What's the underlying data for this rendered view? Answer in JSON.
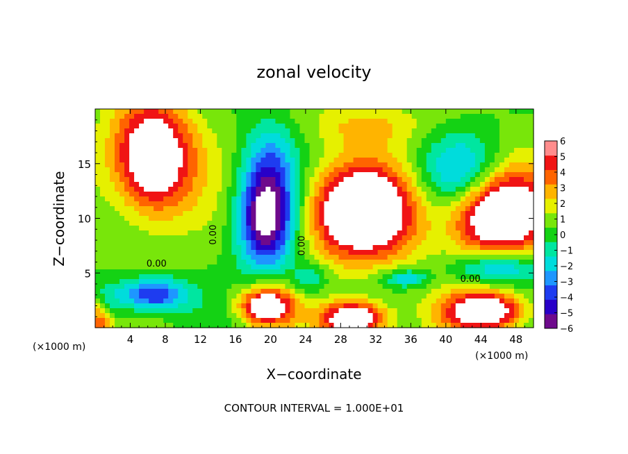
{
  "chart_data": {
    "type": "heatmap",
    "title": "zonal velocity",
    "xlabel": "X−coordinate",
    "ylabel": "Z−coordinate",
    "x_unit_left": "(×1000 m)",
    "x_unit_right": "(×1000 m)",
    "footer": "CONTOUR INTERVAL = 1.000E+01",
    "xlim": [
      0,
      50
    ],
    "ylim": [
      0,
      20
    ],
    "x_ticks": [
      4,
      8,
      12,
      16,
      20,
      24,
      28,
      32,
      36,
      40,
      44,
      48
    ],
    "y_ticks": [
      5,
      10,
      15
    ],
    "colorbar": {
      "min": -6,
      "max": 6,
      "ticks": [
        6,
        5,
        4,
        3,
        2,
        1,
        0,
        -1,
        -2,
        -3,
        -4,
        -5,
        -6
      ],
      "colors": [
        "#6e0a8c",
        "#2800c8",
        "#1e3cf0",
        "#1e96ff",
        "#00dcdc",
        "#00e6a0",
        "#14d214",
        "#78e60a",
        "#e6f000",
        "#ffb400",
        "#ff6400",
        "#f01414",
        "#ff8c8c"
      ],
      "above_max_color": "#ffffff",
      "below_min_color": "#ffffff"
    },
    "contour_labels": [
      {
        "text": "0.00",
        "x": 7.0,
        "y": 5.6,
        "angle": 0
      },
      {
        "text": "0.00",
        "x": 13.8,
        "y": 8.5,
        "angle": -90
      },
      {
        "text": "0.00",
        "x": 23.9,
        "y": 7.5,
        "angle": -90
      },
      {
        "text": "0.00",
        "x": 42.8,
        "y": 4.2,
        "angle": 0
      }
    ],
    "field_features": [
      {
        "kind": "max",
        "x": 6.5,
        "y": 15.5,
        "sx": 4.5,
        "sy": 5.0,
        "amp": 8
      },
      {
        "kind": "max",
        "x": 30.5,
        "y": 10.5,
        "sx": 6.0,
        "sy": 4.2,
        "amp": 8.5
      },
      {
        "kind": "max",
        "x": 46.0,
        "y": 10.5,
        "sx": 5.5,
        "sy": 3.8,
        "amp": 8.5
      },
      {
        "kind": "max",
        "x": 19.5,
        "y": 2.0,
        "sx": 3.0,
        "sy": 1.7,
        "amp": 7
      },
      {
        "kind": "max",
        "x": 29.5,
        "y": 0.8,
        "sx": 3.6,
        "sy": 1.6,
        "amp": 8
      },
      {
        "kind": "max",
        "x": 44.5,
        "y": 1.5,
        "sx": 4.5,
        "sy": 1.8,
        "amp": 7.5
      },
      {
        "kind": "max",
        "x": 0.5,
        "y": 1.0,
        "sx": 1.5,
        "sy": 2.0,
        "amp": 5
      },
      {
        "kind": "max",
        "x": 31.0,
        "y": 18.5,
        "sx": 6.0,
        "sy": 2.0,
        "amp": 2
      },
      {
        "kind": "min",
        "x": 19.5,
        "y": 10.0,
        "sx": 3.2,
        "sy": 4.5,
        "amp": -8
      },
      {
        "kind": "min",
        "x": 20.0,
        "y": 15.5,
        "sx": 3.0,
        "sy": 4.0,
        "amp": -2.5
      },
      {
        "kind": "min",
        "x": 6.5,
        "y": 3.0,
        "sx": 4.0,
        "sy": 1.6,
        "amp": -5.5
      },
      {
        "kind": "min",
        "x": 1.0,
        "y": 2.0,
        "sx": 1.8,
        "sy": 2.0,
        "amp": -3
      },
      {
        "kind": "min",
        "x": 42.0,
        "y": 14.0,
        "sx": 4.5,
        "sy": 3.5,
        "amp": -4
      },
      {
        "kind": "min",
        "x": 35.5,
        "y": 4.5,
        "sx": 2.5,
        "sy": 0.8,
        "amp": -3.5
      },
      {
        "kind": "min",
        "x": 46.0,
        "y": 5.5,
        "sx": 5.0,
        "sy": 1.5,
        "amp": -4
      },
      {
        "kind": "min",
        "x": 24.5,
        "y": 4.5,
        "sx": 2.0,
        "sy": 1.4,
        "amp": -2.5
      }
    ]
  }
}
